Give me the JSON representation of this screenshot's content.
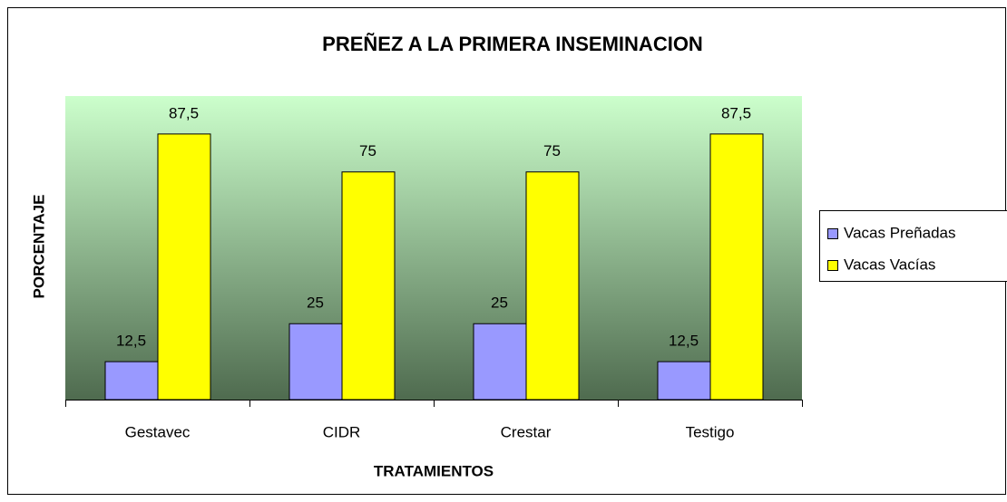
{
  "chart_data": {
    "type": "bar",
    "title": "PREÑEZ A LA PRIMERA INSEMINACION",
    "x_label": "TRATAMIENTOS",
    "y_label": "PORCENTAJE",
    "categories": [
      "Gestavec",
      "CIDR",
      "Crestar",
      "Testigo"
    ],
    "series": [
      {
        "name": "Vacas Preñadas",
        "color": "#9999ff",
        "values": [
          12.5,
          25,
          25,
          12.5
        ],
        "value_labels": [
          "12,5",
          "25",
          "25",
          "12,5"
        ]
      },
      {
        "name": "Vacas Vacías",
        "color": "#ffff00",
        "values": [
          87.5,
          75,
          75,
          87.5
        ],
        "value_labels": [
          "87,5",
          "75",
          "75",
          "87,5"
        ]
      }
    ],
    "ylim": [
      0,
      100
    ],
    "legend": "right"
  }
}
